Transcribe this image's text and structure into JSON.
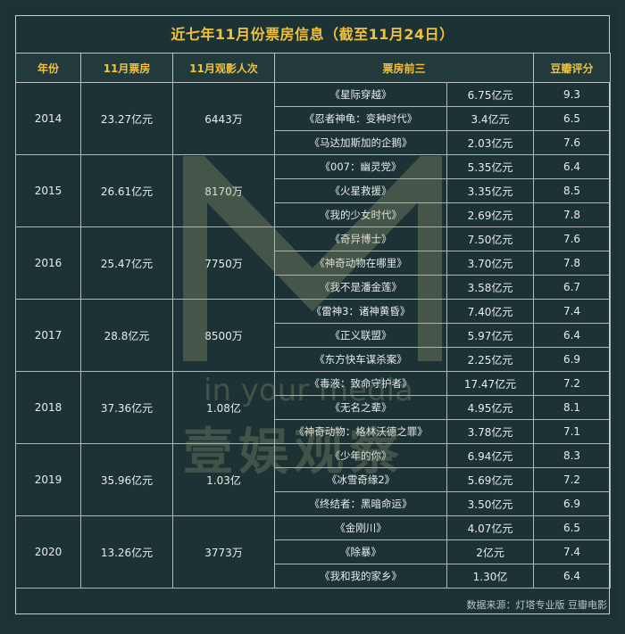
{
  "title": "近七年11月份票房信息（截至11月24日）",
  "headers": [
    "年份",
    "11月票房",
    "11月观影人次",
    "票房前三",
    "豆瓣评分"
  ],
  "years": [
    {
      "year": "2014",
      "box_office": "23.27亿元",
      "audience": "6443万",
      "films": [
        {
          "name": "《星际穿越》",
          "gross": "6.75亿元",
          "score": "9.3"
        },
        {
          "name": "《忍者神龟：变种时代》",
          "gross": "3.4亿元",
          "score": "6.5"
        },
        {
          "name": "《马达加斯加的企鹅》",
          "gross": "2.03亿元",
          "score": "7.6"
        }
      ]
    },
    {
      "year": "2015",
      "box_office": "26.61亿元",
      "audience": "8170万",
      "films": [
        {
          "name": "《007：幽灵党》",
          "gross": "5.35亿元",
          "score": "6.4"
        },
        {
          "name": "《火星救援》",
          "gross": "3.35亿元",
          "score": "8.5"
        },
        {
          "name": "《我的少女时代》",
          "gross": "2.69亿元",
          "score": "7.8"
        }
      ]
    },
    {
      "year": "2016",
      "box_office": "25.47亿元",
      "audience": "7750万",
      "films": [
        {
          "name": "《奇异博士》",
          "gross": "7.50亿元",
          "score": "7.6"
        },
        {
          "name": "《神奇动物在哪里》",
          "gross": "3.70亿元",
          "score": "7.8"
        },
        {
          "name": "《我不是潘金莲》",
          "gross": "3.58亿元",
          "score": "6.7"
        }
      ]
    },
    {
      "year": "2017",
      "box_office": "28.8亿元",
      "audience": "8500万",
      "films": [
        {
          "name": "《雷神3：诸神黄昏》",
          "gross": "7.40亿元",
          "score": "7.4"
        },
        {
          "name": "《正义联盟》",
          "gross": "5.97亿元",
          "score": "6.4"
        },
        {
          "name": "《东方快车谋杀案》",
          "gross": "2.25亿元",
          "score": "6.9"
        }
      ]
    },
    {
      "year": "2018",
      "box_office": "37.36亿元",
      "audience": "1.08亿",
      "films": [
        {
          "name": "《毒液：致命守护者》",
          "gross": "17.47亿元",
          "score": "7.2"
        },
        {
          "name": "《无名之辈》",
          "gross": "4.95亿元",
          "score": "8.1"
        },
        {
          "name": "《神奇动物：格林沃德之罪》",
          "gross": "3.78亿元",
          "score": "7.1"
        }
      ]
    },
    {
      "year": "2019",
      "box_office": "35.96亿元",
      "audience": "1.03亿",
      "films": [
        {
          "name": "《少年的你》",
          "gross": "6.94亿元",
          "score": "8.3"
        },
        {
          "name": "《冰雪奇缘2》",
          "gross": "5.69亿元",
          "score": "7.2"
        },
        {
          "name": "《终结者：黑暗命运》",
          "gross": "3.50亿元",
          "score": "6.9"
        }
      ]
    },
    {
      "year": "2020",
      "box_office": "13.26亿元",
      "audience": "3773万",
      "films": [
        {
          "name": "《金刚川》",
          "gross": "4.07亿元",
          "score": "6.5"
        },
        {
          "name": "《除暴》",
          "gross": "2亿元",
          "score": "7.4"
        },
        {
          "name": "《我和我的家乡》",
          "gross": "1.30亿",
          "score": "6.4"
        }
      ]
    }
  ],
  "footer": "数据来源：灯塔专业版 豆瓣电影",
  "watermark": {
    "main": "壹娱观察",
    "sub": "in your media"
  },
  "colors": {
    "background": "#1f3436",
    "accent": "#f0c23c",
    "text": "#e6eaea",
    "grid": "#aeb8b8"
  }
}
